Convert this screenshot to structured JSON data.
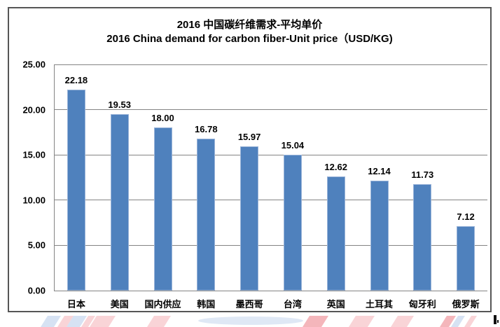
{
  "header": {
    "title_zh": "2016 中国碳纤维需求-平均单价",
    "title_en": "2016 China demand for carbon fiber-Unit price（USD/KG)"
  },
  "chart_data": {
    "type": "bar",
    "title": "2016 中国碳纤维需求-平均单价",
    "subtitle": "2016 China demand for carbon fiber-Unit price（USD/KG)",
    "categories": [
      "日本",
      "美国",
      "国内供应",
      "韩国",
      "墨西哥",
      "台湾",
      "英国",
      "土耳其",
      "匈牙利",
      "俄罗斯"
    ],
    "values": [
      22.18,
      19.53,
      18.0,
      16.78,
      15.97,
      15.04,
      12.62,
      12.14,
      11.73,
      7.12
    ],
    "value_labels": [
      "22.18",
      "19.53",
      "18.00",
      "16.78",
      "15.97",
      "15.04",
      "12.62",
      "12.14",
      "11.73",
      "7.12"
    ],
    "xlabel": "",
    "ylabel": "",
    "ylim": [
      0,
      25
    ],
    "ytick_step": 5,
    "ytick_labels": [
      "0.00",
      "5.00",
      "10.00",
      "15.00",
      "20.00",
      "25.00"
    ],
    "grid": true,
    "legend_position": "none",
    "bar_color": "#4f81bd",
    "bar_border_color": "#9ab4d9",
    "gridline_color": "#848484",
    "frame_border_color": "#565656"
  }
}
